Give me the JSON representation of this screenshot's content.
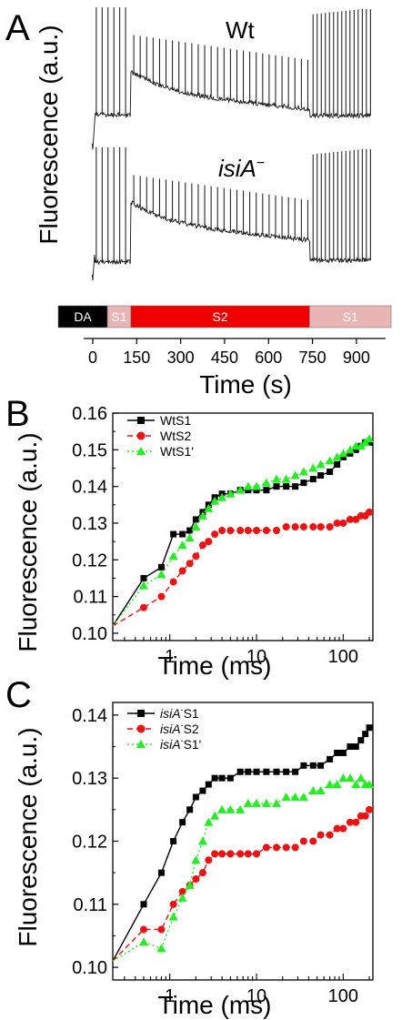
{
  "panels": {
    "A": {
      "letter": "A"
    },
    "B": {
      "letter": "B"
    },
    "C": {
      "letter": "C"
    }
  },
  "chart_data": [
    {
      "panel": "A",
      "type": "line",
      "ylabel": "Fluorescence (a.u.)",
      "xlabel": "Time (s)",
      "xlim": [
        0,
        950
      ],
      "xticks": [
        0,
        150,
        300,
        450,
        600,
        750,
        900
      ],
      "traces": [
        {
          "name": "Wt",
          "italic": false,
          "superscript": ""
        },
        {
          "name": "isiA",
          "italic": true,
          "superscript": "−"
        }
      ],
      "segments": [
        {
          "label": "DA",
          "start": 0,
          "end": 50,
          "color": "#000000",
          "text_color": "#ffffff"
        },
        {
          "label": "S1",
          "start": 50,
          "end": 130,
          "color": "#e8b4b4",
          "text_color": "#ffffff"
        },
        {
          "label": "S2",
          "start": 130,
          "end": 740,
          "color": "#ee0000",
          "text_color": "#ffffff"
        },
        {
          "label": "S1",
          "start": 740,
          "end": 950,
          "color": "#e8b4b4",
          "text_color": "#ffffff"
        }
      ]
    },
    {
      "panel": "B",
      "type": "line",
      "xscale": "log",
      "xlabel": "Time (ms)",
      "ylabel": "Fluorescence (a.u.)",
      "xlim": [
        0.22,
        220
      ],
      "ylim": [
        0.098,
        0.16
      ],
      "xticks": [
        1,
        10,
        100
      ],
      "yticks": [
        0.1,
        0.11,
        0.12,
        0.13,
        0.14,
        0.15,
        0.16
      ],
      "legend_position": "top-left",
      "series": [
        {
          "name": "WtS1",
          "color": "#000000",
          "marker": "square",
          "dash": "solid",
          "x": [
            0.2,
            0.5,
            0.8,
            1.1,
            1.4,
            1.7,
            2.0,
            2.4,
            2.8,
            3.3,
            4.0,
            5.0,
            6.5,
            8,
            10,
            13,
            17,
            22,
            28,
            35,
            45,
            55,
            70,
            85,
            100,
            120,
            140,
            160,
            180,
            200
          ],
          "y": [
            0.102,
            0.115,
            0.118,
            0.127,
            0.127,
            0.128,
            0.131,
            0.133,
            0.135,
            0.137,
            0.138,
            0.138,
            0.139,
            0.139,
            0.139,
            0.139,
            0.14,
            0.14,
            0.14,
            0.141,
            0.142,
            0.143,
            0.144,
            0.146,
            0.148,
            0.149,
            0.15,
            0.151,
            0.152,
            0.152
          ]
        },
        {
          "name": "WtS2",
          "color": "#ee1111",
          "marker": "circle",
          "dash": "dashed",
          "x": [
            0.2,
            0.5,
            0.8,
            1.1,
            1.4,
            1.7,
            2.0,
            2.4,
            2.8,
            3.3,
            4.0,
            5.0,
            6.5,
            8,
            10,
            13,
            17,
            22,
            28,
            35,
            45,
            55,
            70,
            85,
            100,
            120,
            140,
            160,
            180,
            200
          ],
          "y": [
            0.102,
            0.107,
            0.11,
            0.114,
            0.117,
            0.119,
            0.121,
            0.124,
            0.125,
            0.127,
            0.128,
            0.128,
            0.128,
            0.128,
            0.128,
            0.128,
            0.128,
            0.129,
            0.129,
            0.129,
            0.129,
            0.129,
            0.129,
            0.13,
            0.13,
            0.131,
            0.131,
            0.132,
            0.132,
            0.133
          ]
        },
        {
          "name": "WtS1'",
          "color": "#22ee22",
          "marker": "triangle",
          "dash": "dotted",
          "x": [
            0.2,
            0.5,
            0.8,
            1.1,
            1.4,
            1.7,
            2.0,
            2.4,
            2.8,
            3.3,
            4.0,
            5.0,
            6.5,
            8,
            10,
            13,
            17,
            22,
            28,
            35,
            45,
            55,
            70,
            85,
            100,
            120,
            140,
            160,
            180,
            200
          ],
          "y": [
            0.102,
            0.113,
            0.116,
            0.121,
            0.124,
            0.126,
            0.129,
            0.132,
            0.134,
            0.136,
            0.137,
            0.138,
            0.139,
            0.14,
            0.14,
            0.141,
            0.142,
            0.142,
            0.143,
            0.144,
            0.145,
            0.146,
            0.147,
            0.148,
            0.149,
            0.15,
            0.151,
            0.151,
            0.152,
            0.153
          ]
        }
      ]
    },
    {
      "panel": "C",
      "type": "line",
      "xscale": "log",
      "xlabel": "Time (ms)",
      "ylabel": "Fluorescence (a.u.)",
      "xlim": [
        0.22,
        220
      ],
      "ylim": [
        0.098,
        0.142
      ],
      "xticks": [
        1,
        10,
        100
      ],
      "yticks": [
        0.1,
        0.11,
        0.12,
        0.13,
        0.14
      ],
      "legend_position": "top-left",
      "series": [
        {
          "name": "isiA",
          "name_suffix": "S1",
          "color": "#000000",
          "marker": "square",
          "dash": "solid",
          "x": [
            0.2,
            0.5,
            0.8,
            1.1,
            1.4,
            1.7,
            2.0,
            2.4,
            2.8,
            3.3,
            4.0,
            5.0,
            6.5,
            8,
            10,
            13,
            17,
            22,
            28,
            35,
            45,
            55,
            70,
            85,
            100,
            120,
            140,
            160,
            180,
            200
          ],
          "y": [
            0.101,
            0.11,
            0.115,
            0.12,
            0.123,
            0.125,
            0.127,
            0.128,
            0.129,
            0.13,
            0.13,
            0.13,
            0.131,
            0.131,
            0.131,
            0.131,
            0.131,
            0.131,
            0.131,
            0.132,
            0.132,
            0.132,
            0.133,
            0.134,
            0.134,
            0.135,
            0.135,
            0.136,
            0.137,
            0.138
          ]
        },
        {
          "name": "isiA",
          "name_suffix": "S2",
          "color": "#ee1111",
          "marker": "circle",
          "dash": "dashed",
          "x": [
            0.2,
            0.5,
            0.8,
            1.1,
            1.4,
            1.7,
            2.0,
            2.4,
            2.8,
            3.3,
            4.0,
            5.0,
            6.5,
            8,
            10,
            13,
            17,
            22,
            28,
            35,
            45,
            55,
            70,
            85,
            100,
            120,
            140,
            160,
            180,
            200
          ],
          "y": [
            0.101,
            0.106,
            0.106,
            0.11,
            0.112,
            0.113,
            0.114,
            0.115,
            0.117,
            0.118,
            0.118,
            0.118,
            0.118,
            0.118,
            0.118,
            0.119,
            0.119,
            0.119,
            0.119,
            0.12,
            0.12,
            0.121,
            0.121,
            0.122,
            0.122,
            0.123,
            0.123,
            0.124,
            0.124,
            0.125
          ]
        },
        {
          "name": "isiA",
          "name_suffix": "S1'",
          "color": "#22ee22",
          "marker": "triangle",
          "dash": "dotted",
          "x": [
            0.2,
            0.5,
            0.8,
            1.1,
            1.4,
            1.7,
            2.0,
            2.4,
            2.8,
            3.3,
            4.0,
            5.0,
            6.5,
            8,
            10,
            13,
            17,
            22,
            28,
            35,
            45,
            55,
            70,
            85,
            100,
            120,
            140,
            160,
            180,
            200
          ],
          "y": [
            0.101,
            0.104,
            0.103,
            0.108,
            0.111,
            0.113,
            0.117,
            0.12,
            0.123,
            0.124,
            0.125,
            0.125,
            0.125,
            0.126,
            0.126,
            0.126,
            0.126,
            0.127,
            0.127,
            0.127,
            0.128,
            0.128,
            0.129,
            0.129,
            0.13,
            0.13,
            0.129,
            0.13,
            0.129,
            0.129
          ]
        }
      ]
    }
  ]
}
